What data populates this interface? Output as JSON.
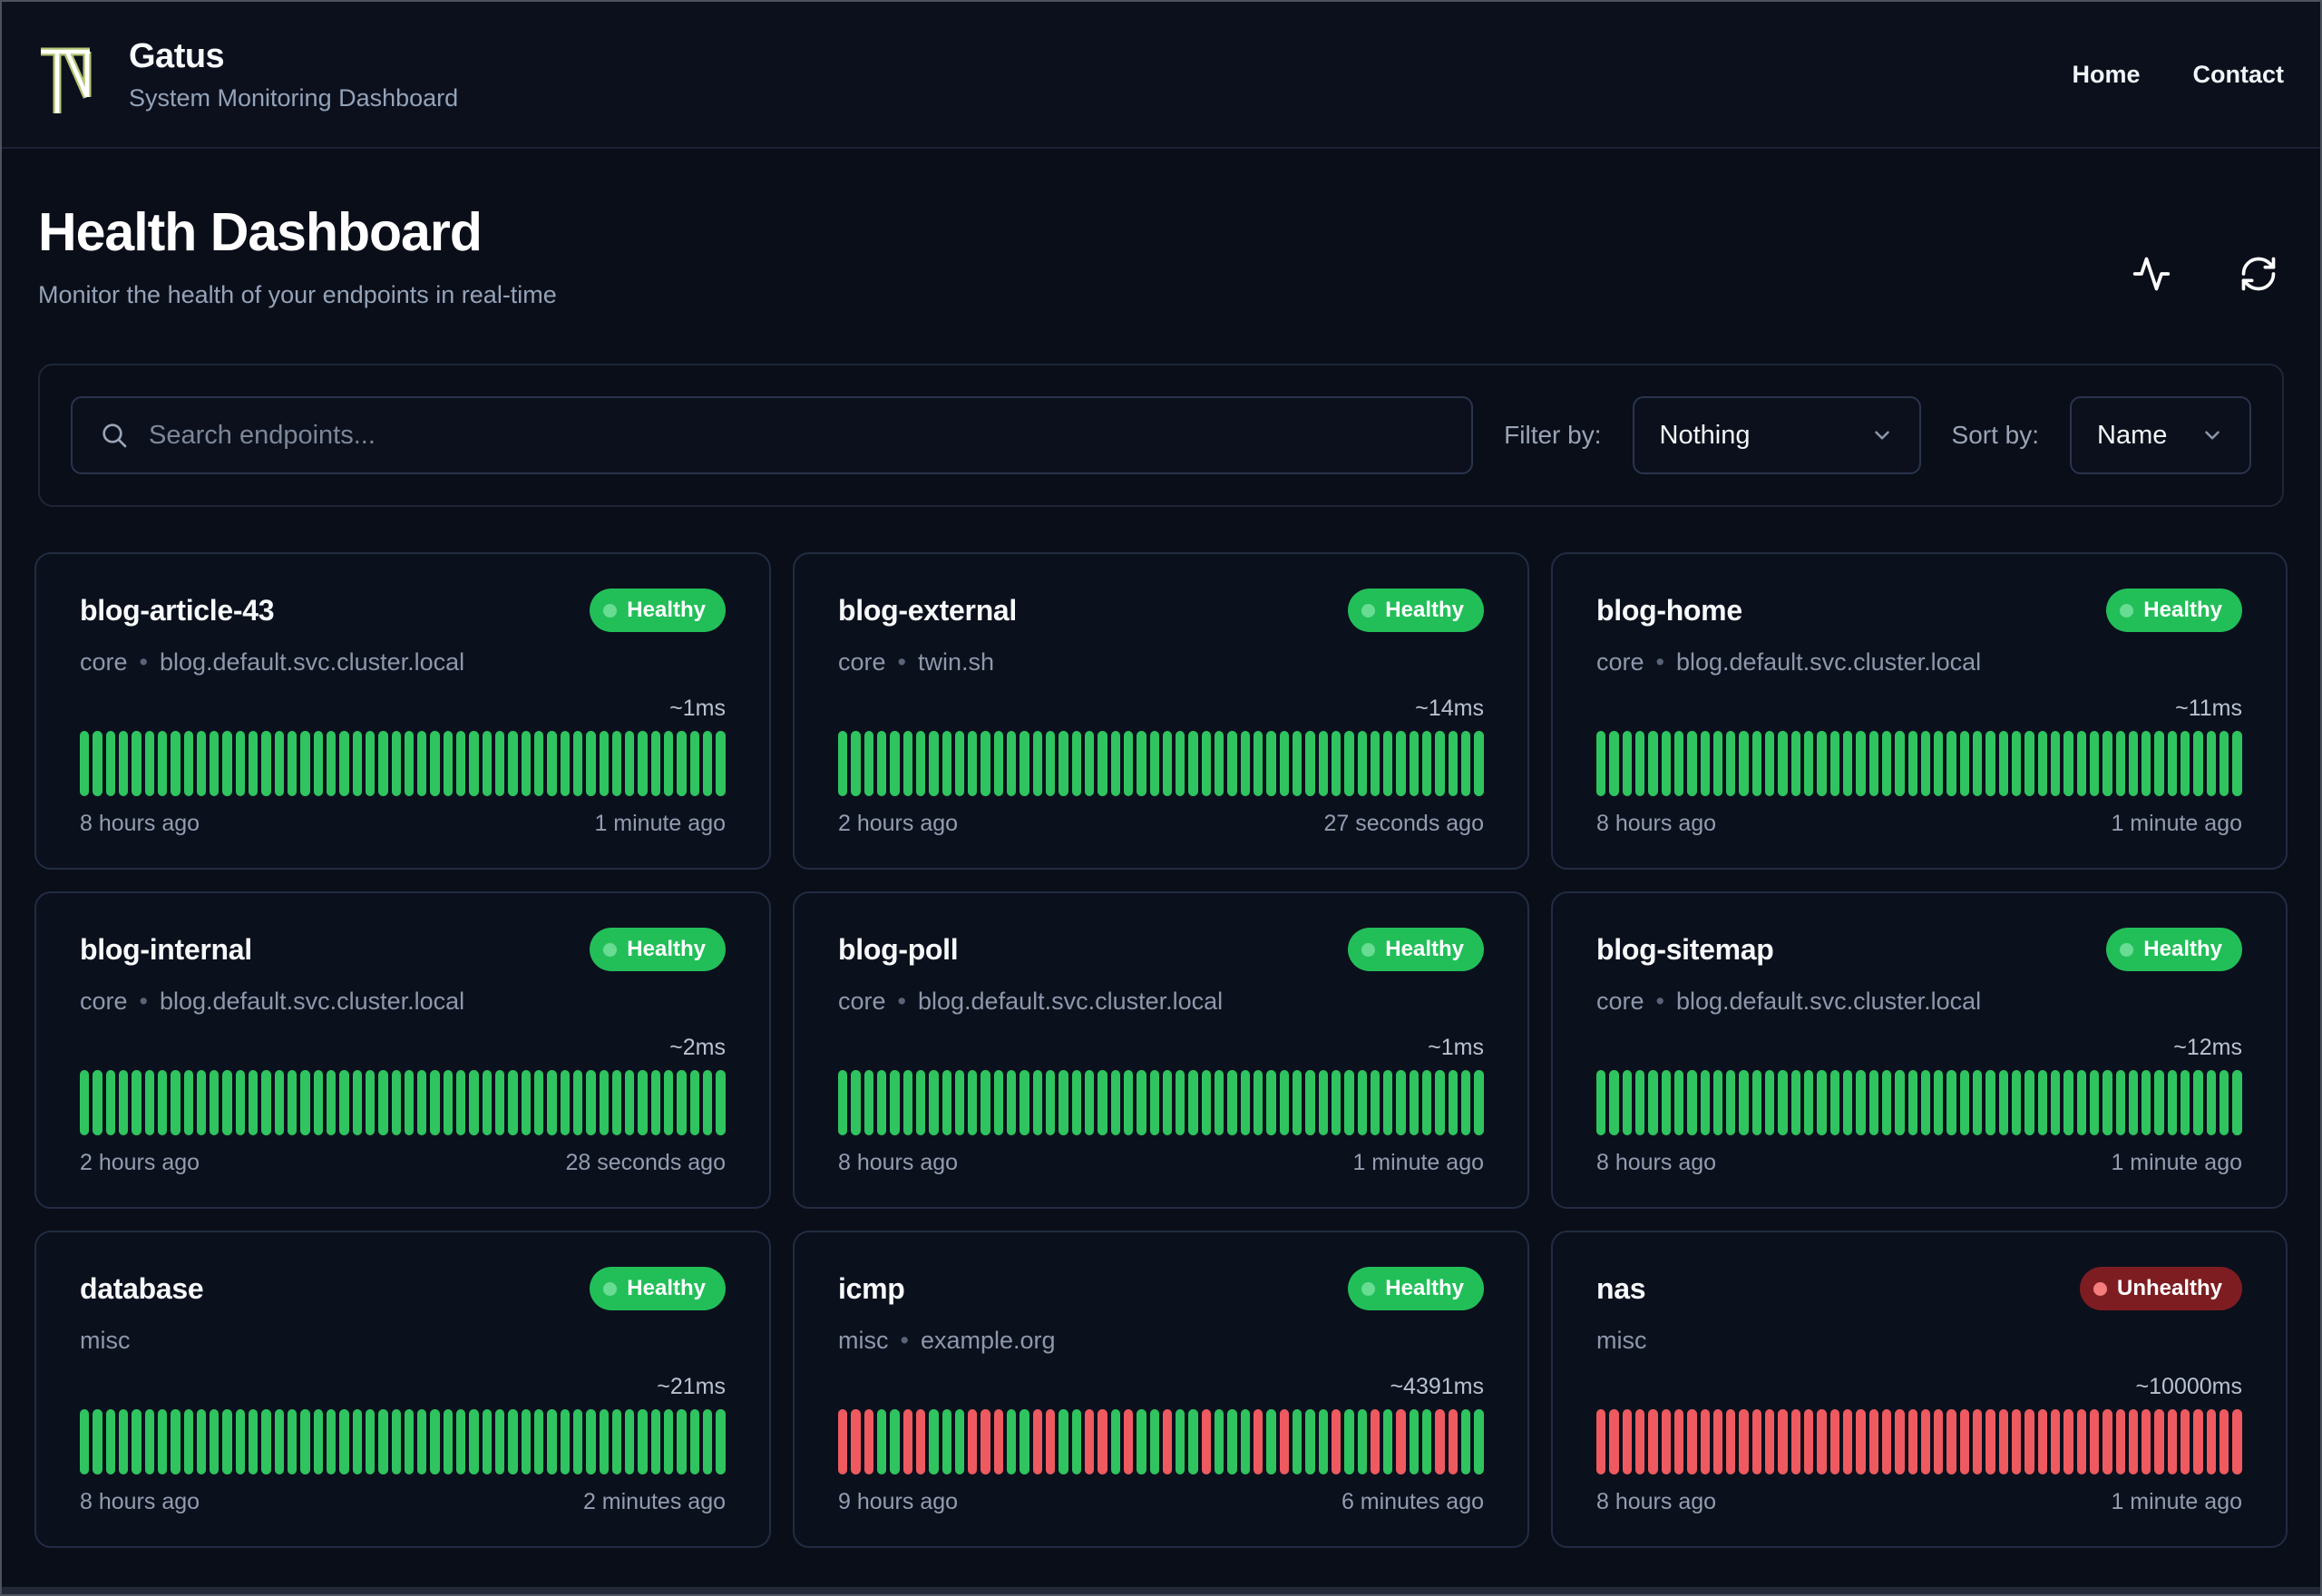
{
  "header": {
    "logo_icon": "tn-monogram-logo",
    "app_name": "Gatus",
    "app_subtitle": "System Monitoring Dashboard",
    "nav": [
      {
        "label": "Home"
      },
      {
        "label": "Contact"
      }
    ]
  },
  "hero": {
    "title": "Health Dashboard",
    "subtitle": "Monitor the health of your endpoints in real-time",
    "icons": [
      "activity-icon",
      "refresh-icon"
    ]
  },
  "toolbar": {
    "search_placeholder": "Search endpoints...",
    "search_icon": "search-icon",
    "filter_label": "Filter by:",
    "filter_value": "Nothing",
    "sort_label": "Sort by:",
    "sort_value": "Name",
    "dropdown_icon": "chevron-down-icon"
  },
  "meta": {
    "bullet": "•"
  },
  "colors": {
    "background": "#0a0e19",
    "card_border": "#222c42",
    "healthy_badge": "#22bf59",
    "healthy_dot": "#68dc92",
    "unhealthy_badge": "#7e1d21",
    "unhealthy_dot": "#f57d7d",
    "bar_success": "#2fc45f",
    "bar_failure": "#ee5a5f",
    "logo_outline": "#b3c472"
  },
  "cards": [
    {
      "name": "blog-article-43",
      "status": "Healthy",
      "group": "core",
      "host": "blog.default.svc.cluster.local",
      "latency": "~1ms",
      "oldest": "8 hours ago",
      "newest": "1 minute ago",
      "bars": "GGGGGGGGGGGGGGGGGGGGGGGGGGGGGGGGGGGGGGGGGGGGGGGGGG"
    },
    {
      "name": "blog-external",
      "status": "Healthy",
      "group": "core",
      "host": "twin.sh",
      "latency": "~14ms",
      "oldest": "2 hours ago",
      "newest": "27 seconds ago",
      "bars": "GGGGGGGGGGGGGGGGGGGGGGGGGGGGGGGGGGGGGGGGGGGGGGGGGG"
    },
    {
      "name": "blog-home",
      "status": "Healthy",
      "group": "core",
      "host": "blog.default.svc.cluster.local",
      "latency": "~11ms",
      "oldest": "8 hours ago",
      "newest": "1 minute ago",
      "bars": "GGGGGGGGGGGGGGGGGGGGGGGGGGGGGGGGGGGGGGGGGGGGGGGGGG"
    },
    {
      "name": "blog-internal",
      "status": "Healthy",
      "group": "core",
      "host": "blog.default.svc.cluster.local",
      "latency": "~2ms",
      "oldest": "2 hours ago",
      "newest": "28 seconds ago",
      "bars": "GGGGGGGGGGGGGGGGGGGGGGGGGGGGGGGGGGGGGGGGGGGGGGGGGG"
    },
    {
      "name": "blog-poll",
      "status": "Healthy",
      "group": "core",
      "host": "blog.default.svc.cluster.local",
      "latency": "~1ms",
      "oldest": "8 hours ago",
      "newest": "1 minute ago",
      "bars": "GGGGGGGGGGGGGGGGGGGGGGGGGGGGGGGGGGGGGGGGGGGGGGGGGG"
    },
    {
      "name": "blog-sitemap",
      "status": "Healthy",
      "group": "core",
      "host": "blog.default.svc.cluster.local",
      "latency": "~12ms",
      "oldest": "8 hours ago",
      "newest": "1 minute ago",
      "bars": "GGGGGGGGGGGGGGGGGGGGGGGGGGGGGGGGGGGGGGGGGGGGGGGGGG"
    },
    {
      "name": "database",
      "status": "Healthy",
      "group": "misc",
      "host": "",
      "latency": "~21ms",
      "oldest": "8 hours ago",
      "newest": "2 minutes ago",
      "bars": "GGGGGGGGGGGGGGGGGGGGGGGGGGGGGGGGGGGGGGGGGGGGGGGGGG"
    },
    {
      "name": "icmp",
      "status": "Healthy",
      "group": "misc",
      "host": "example.org",
      "latency": "~4391ms",
      "oldest": "9 hours ago",
      "newest": "6 minutes ago",
      "bars": "RRRGGRRGGGRRRGGRRGGRRGRGGRGGRGGGRGRGGGRGGRGRGGRRGG"
    },
    {
      "name": "nas",
      "status": "Unhealthy",
      "group": "misc",
      "host": "",
      "latency": "~10000ms",
      "oldest": "8 hours ago",
      "newest": "1 minute ago",
      "bars": "RRRRRRRRRRRRRRRRRRRRRRRRRRRRRRRRRRRRRRRRRRRRRRRRRR"
    }
  ]
}
